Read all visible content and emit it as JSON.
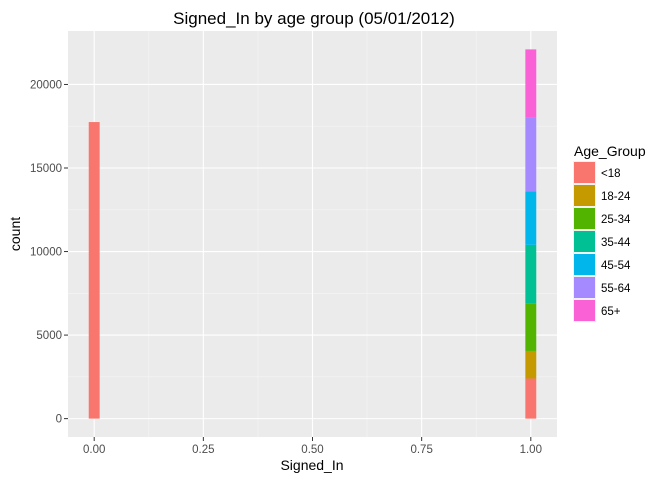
{
  "chart_data": {
    "type": "bar",
    "stacked": true,
    "title": "Signed_In by age group (05/01/2012)",
    "xlabel": "Signed_In",
    "ylabel": "count",
    "xlim": [
      -0.06,
      1.06
    ],
    "ylim": [
      -1100,
      23200
    ],
    "xticks": [
      0,
      0.25,
      0.5,
      0.75,
      1
    ],
    "xtick_labels": [
      "0.00",
      "0.25",
      "0.50",
      "0.75",
      "1.00"
    ],
    "yticks": [
      0,
      5000,
      10000,
      15000,
      20000
    ],
    "ytick_labels": [
      "0",
      "5000",
      "10000",
      "15000",
      "20000"
    ],
    "bar_width": 0.025,
    "grid": true,
    "legend_position": "right",
    "legend_title": "Age_Group",
    "x": [
      0,
      1
    ],
    "series": [
      {
        "name": "<18",
        "color": "#F8766D",
        "values": [
          17750,
          2400
        ]
      },
      {
        "name": "18-24",
        "color": "#C49A00",
        "values": [
          0,
          1650
        ]
      },
      {
        "name": "25-34",
        "color": "#53B400",
        "values": [
          0,
          2850
        ]
      },
      {
        "name": "35-44",
        "color": "#00C094",
        "values": [
          0,
          3500
        ]
      },
      {
        "name": "45-54",
        "color": "#00B6EB",
        "values": [
          0,
          3200
        ]
      },
      {
        "name": "55-64",
        "color": "#A58AFF",
        "values": [
          0,
          4400
        ]
      },
      {
        "name": "65+",
        "color": "#FB61D7",
        "values": [
          0,
          4100
        ]
      }
    ]
  }
}
